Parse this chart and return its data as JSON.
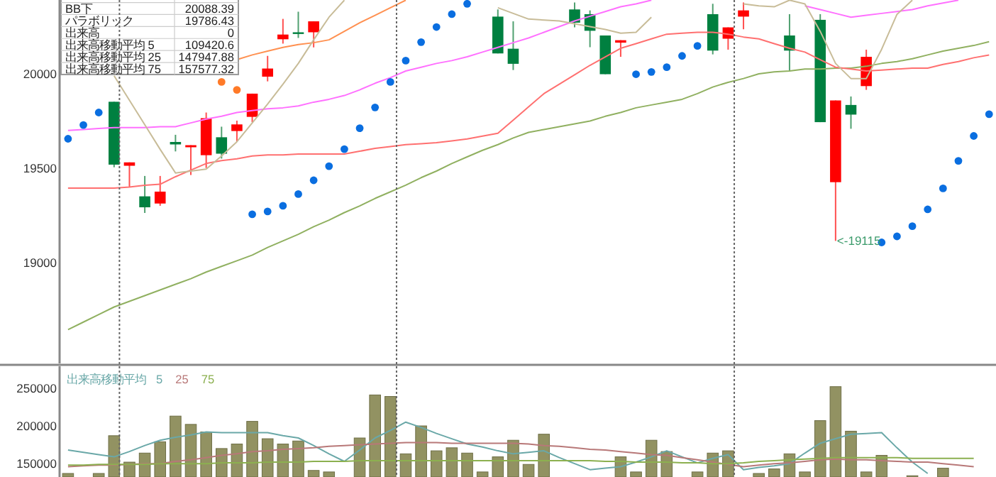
{
  "chart_data": [
    {
      "type": "candlestick",
      "categories": [
        null,
        null,
        null,
        null,
        null,
        null,
        null,
        null,
        null,
        null,
        null,
        null,
        null,
        null,
        null,
        null,
        null,
        null,
        null,
        null,
        null,
        null,
        null,
        null,
        null,
        null,
        null,
        null,
        null,
        null,
        null,
        null,
        null,
        null,
        null,
        null,
        null,
        null,
        null,
        null,
        null,
        null,
        null,
        null,
        null,
        null,
        null,
        null,
        null,
        null,
        null,
        null,
        null,
        null,
        null,
        null,
        null,
        null,
        null,
        null,
        null
      ],
      "ohlc": [
        null,
        null,
        null,
        [
          19852,
          19852,
          19505,
          19519
        ],
        [
          19513,
          19531,
          19401,
          19531
        ],
        [
          19351,
          19459,
          19263,
          19293
        ],
        [
          19313,
          19459,
          19301,
          19376
        ],
        [
          19639,
          19677,
          19589,
          19626
        ],
        [
          19611,
          19622,
          19464,
          19622
        ],
        [
          19569,
          19795,
          19501,
          19765
        ],
        [
          19664,
          19720,
          19551,
          19577
        ],
        [
          19697,
          19752,
          19639,
          19732
        ],
        [
          19772,
          19895,
          19744,
          19895
        ],
        [
          19985,
          20095,
          19960,
          20028
        ],
        [
          20183,
          20291,
          20160,
          20208
        ],
        [
          20220,
          20329,
          20190,
          20213
        ],
        [
          20220,
          20278,
          20140,
          20278
        ],
        null,
        null,
        null,
        null,
        null,
        null,
        null,
        null,
        null,
        null,
        null,
        [
          20303,
          20341,
          20108,
          20108
        ],
        [
          20133,
          20278,
          20020,
          20053
        ],
        null,
        null,
        null,
        [
          20341,
          20378,
          20246,
          20271
        ],
        [
          20316,
          20336,
          20141,
          20228
        ],
        [
          20203,
          20203,
          19998,
          19998
        ],
        [
          20165,
          20178,
          20090,
          20178
        ],
        null,
        null,
        null,
        null,
        null,
        [
          20316,
          20371,
          20103,
          20123
        ],
        [
          20186,
          20246,
          20128,
          20246
        ],
        [
          20303,
          20378,
          20236,
          20336
        ],
        null,
        null,
        [
          20203,
          20316,
          20015,
          20123
        ],
        null,
        [
          20286,
          20316,
          19744,
          19744
        ],
        [
          19426,
          19859,
          19115,
          19859
        ],
        [
          19835,
          19880,
          19709,
          19784
        ],
        [
          19935,
          20128,
          19915,
          20090
        ],
        null,
        null,
        null,
        null,
        null,
        null,
        null,
        null
      ],
      "ylim": [
        18466,
        20391
      ],
      "yticks": [
        19000,
        19500,
        20000
      ],
      "tick_labels": "y",
      "series": [
        {
          "type": "line",
          "color": "#90b060",
          "values": [
            18645,
            18685,
            18725,
            18765,
            18795,
            18825,
            18855,
            18885,
            18915,
            18950,
            18980,
            19010,
            19040,
            19080,
            19115,
            19150,
            19190,
            19225,
            19265,
            19300,
            19340,
            19375,
            19410,
            19450,
            19485,
            19525,
            19560,
            19595,
            19625,
            19660,
            19690,
            19705,
            19720,
            19735,
            19750,
            19775,
            19795,
            19820,
            19835,
            19850,
            19865,
            19895,
            19930,
            19955,
            19975,
            20000,
            20010,
            20015,
            20025,
            20025,
            20030,
            20030,
            20040,
            20055,
            20065,
            20080,
            20100,
            20120,
            20135,
            20150,
            20170
          ]
        },
        {
          "type": "line",
          "color": "#ff7070",
          "values": [
            19395,
            19395,
            19395,
            19395,
            19400,
            19410,
            19415,
            19455,
            19490,
            19525,
            19540,
            19550,
            19565,
            19570,
            19570,
            19575,
            19575,
            19575,
            19575,
            19590,
            19605,
            19615,
            19625,
            19630,
            19635,
            19645,
            19655,
            19670,
            19685,
            19755,
            19825,
            19895,
            19945,
            19995,
            20045,
            20090,
            20135,
            20160,
            20185,
            20210,
            20215,
            20220,
            20220,
            20210,
            20195,
            20185,
            20160,
            20135,
            20115,
            20075,
            20035,
            20025,
            20015,
            20020,
            20025,
            20030,
            20030,
            20050,
            20065,
            20085,
            20100
          ]
        },
        {
          "type": "line",
          "color": "#ff70ff",
          "values": [
            19700,
            19705,
            19710,
            19715,
            19715,
            19715,
            19720,
            19720,
            19740,
            19760,
            19775,
            19795,
            19805,
            19815,
            19820,
            19830,
            19850,
            19865,
            19885,
            19915,
            19950,
            19980,
            20015,
            20035,
            20055,
            20070,
            20090,
            20115,
            20140,
            20165,
            20190,
            20220,
            20250,
            20280,
            20305,
            20330,
            20355,
            20370,
            20390,
            null,
            null,
            null,
            null,
            null,
            null,
            null,
            null,
            null,
            20360,
            20340,
            20320,
            20300,
            20310,
            20320,
            20330,
            20340,
            20360,
            20375,
            20390,
            null,
            null
          ]
        },
        {
          "type": "line",
          "color": "#ff9050",
          "values": [
            null,
            null,
            null,
            null,
            null,
            null,
            null,
            null,
            null,
            null,
            null,
            20075,
            20100,
            20120,
            20140,
            20155,
            20165,
            20180,
            20225,
            20270,
            20310,
            20350,
            20390,
            null,
            null,
            null,
            null,
            null,
            null,
            null,
            null,
            null,
            null,
            null,
            null,
            null,
            null,
            null,
            null,
            null,
            null,
            null,
            null,
            null,
            null,
            null,
            null,
            null,
            null,
            null,
            null,
            null,
            null,
            null,
            null,
            null,
            null,
            null,
            null,
            null,
            null
          ]
        },
        {
          "type": "line",
          "color": "#c8bc98",
          "values": [
            null,
            null,
            null,
            19990,
            19860,
            19730,
            19600,
            19475,
            19485,
            19495,
            19565,
            19640,
            19740,
            19840,
            19945,
            20055,
            20180,
            20300,
            20390,
            null,
            null,
            null,
            null,
            null,
            null,
            null,
            null,
            null,
            20350,
            20320,
            20290,
            20285,
            20280,
            20265,
            20250,
            20235,
            20215,
            20220,
            20300,
            null,
            null,
            null,
            null,
            null,
            20370,
            20360,
            20355,
            20390,
            20370,
            20225,
            20055,
            19975,
            19975,
            20130,
            20315,
            20390,
            null,
            null,
            null,
            null,
            null
          ]
        },
        {
          "type": "scatter",
          "color": "#0a6ee0",
          "values": [
            19656,
            19729,
            19795,
            null,
            null,
            null,
            null,
            null,
            null,
            null,
            null,
            null,
            19256,
            19271,
            19301,
            19363,
            19436,
            19511,
            19601,
            19712,
            19822,
            19957,
            20070,
            20168,
            20248,
            20316,
            20371,
            null,
            null,
            null,
            null,
            null,
            null,
            null,
            null,
            null,
            null,
            19998,
            20010,
            20035,
            20095,
            20148,
            null,
            null,
            null,
            null,
            null,
            null,
            null,
            null,
            null,
            null,
            null,
            19107,
            19139,
            19193,
            19282,
            19393,
            19539,
            19671,
            19786
          ]
        },
        {
          "type": "scatter",
          "color": "#ff7a28",
          "values": [
            null,
            null,
            null,
            null,
            null,
            null,
            null,
            null,
            null,
            null,
            19957,
            19915,
            null,
            null,
            null,
            null,
            null,
            null,
            null,
            null,
            null,
            null,
            null,
            null,
            null,
            null,
            null,
            null,
            null,
            null,
            null,
            null,
            null,
            null,
            null,
            null,
            null,
            null,
            null,
            null,
            null,
            null,
            null,
            null,
            null,
            null,
            null,
            null,
            null,
            null,
            null,
            null,
            null,
            null,
            null,
            null,
            null,
            null,
            null,
            null,
            null
          ]
        }
      ],
      "annotations": [
        "<-19115",
        "BB下",
        "20088.39",
        "パラボリック",
        "19786.43",
        "出来高",
        "0",
        "出来高移動平均 5",
        "109420.6",
        "出来高移動平均 25",
        "147947.88",
        "出来高移動平均 75",
        "157577.32"
      ]
    },
    {
      "type": "bar",
      "categories": [
        null,
        null,
        null,
        null,
        null,
        null,
        null,
        null,
        null,
        null,
        null,
        null,
        null,
        null,
        null,
        null,
        null,
        null,
        null,
        null,
        null,
        null,
        null,
        null,
        null,
        null,
        null,
        null,
        null,
        null,
        null,
        null,
        null,
        null,
        null,
        null,
        null,
        null,
        null,
        null,
        null,
        null,
        null,
        null,
        null,
        null,
        null,
        null,
        null,
        null,
        null,
        null,
        null,
        null,
        null,
        null,
        null,
        null,
        null,
        null,
        null
      ],
      "ylim": [
        132300,
        279000
      ],
      "yticks": [
        150000,
        200000,
        250000
      ],
      "tick_labels": "y",
      "legend": "top left",
      "legend_title": "出来高移動平均",
      "series": [
        {
          "type": "bar",
          "color": "#929262",
          "values": [
            137000,
            null,
            137000,
            187000,
            152000,
            164000,
            179000,
            213000,
            202000,
            192000,
            170000,
            176000,
            206000,
            183000,
            176000,
            180000,
            141000,
            139000,
            null,
            184000,
            241000,
            239000,
            163000,
            200000,
            167000,
            171000,
            164000,
            139000,
            159000,
            181000,
            149000,
            189000,
            null,
            null,
            null,
            null,
            159000,
            139000,
            181000,
            166000,
            null,
            139000,
            164000,
            167000,
            null,
            137000,
            143000,
            163000,
            139000,
            207000,
            252000,
            193000,
            139000,
            161000,
            null,
            134000,
            null,
            144000,
            null,
            null,
            null
          ]
        },
        {
          "type": "line",
          "name": "5",
          "color": "#6aa8a8",
          "values": [
            168000,
            165000,
            162000,
            159000,
            166000,
            174000,
            181000,
            185000,
            188000,
            192000,
            191000,
            191000,
            191000,
            191000,
            187000,
            184000,
            174000,
            163000,
            153000,
            168000,
            184000,
            194000,
            205000,
            198000,
            190000,
            183000,
            176000,
            172000,
            167000,
            163000,
            165000,
            167000,
            158000,
            150000,
            142000,
            144000,
            146000,
            152000,
            159000,
            167000,
            159000,
            151000,
            157000,
            162000,
            142000,
            145000,
            147000,
            150000,
            164000,
            177000,
            183000,
            189000,
            190000,
            191000,
            171000,
            152000,
            137000,
            null,
            null,
            null,
            null
          ]
        },
        {
          "type": "line",
          "name": "25",
          "color": "#b87878",
          "values": [
            146000,
            147000,
            148000,
            148000,
            149000,
            150000,
            150000,
            153000,
            155000,
            158000,
            161000,
            163000,
            166000,
            167000,
            169000,
            170000,
            171000,
            173000,
            174000,
            175000,
            176000,
            177000,
            178000,
            178000,
            178000,
            177000,
            177000,
            177000,
            177000,
            177000,
            176000,
            174000,
            173000,
            171000,
            169000,
            168000,
            166000,
            164000,
            162000,
            161000,
            158000,
            155000,
            152000,
            149000,
            146000,
            148000,
            150000,
            151000,
            153000,
            155000,
            156000,
            155000,
            155000,
            154000,
            153000,
            152000,
            152000,
            150000,
            148000,
            146000,
            null
          ]
        },
        {
          "type": "line",
          "name": "75",
          "color": "#8cb050",
          "values": [
            148000,
            148000,
            149000,
            149000,
            149000,
            149000,
            150000,
            150000,
            150000,
            150000,
            151000,
            151000,
            151000,
            152000,
            152000,
            152000,
            153000,
            153000,
            153000,
            154000,
            154000,
            154000,
            154000,
            154000,
            154000,
            154000,
            154000,
            154000,
            154000,
            154000,
            154000,
            154000,
            154000,
            154000,
            154000,
            153000,
            153000,
            152000,
            152000,
            152000,
            151000,
            151000,
            150000,
            150000,
            151000,
            153000,
            154000,
            155000,
            156000,
            157000,
            158000,
            158000,
            158000,
            158000,
            158000,
            157000,
            157000,
            157000,
            157000,
            157000,
            null
          ]
        }
      ]
    }
  ]
}
